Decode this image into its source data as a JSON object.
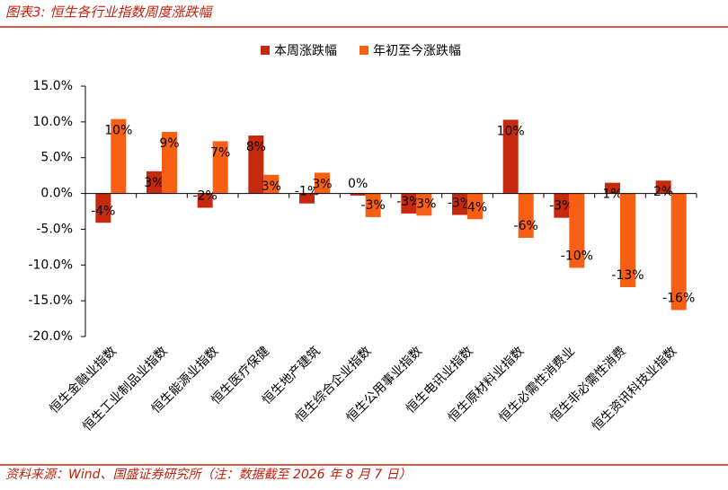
{
  "chart_data": {
    "type": "bar",
    "title": "图表3:  恒生各行业指数周度涨跌幅",
    "source": "资料来源：Wind、国盛证券研究所（注：数据截至 2026 年 8 月 7 日）",
    "categories": [
      "恒生金融业指数",
      "恒生工业制品业指数",
      "恒生能源业指数",
      "恒生医疗保健",
      "恒生地产建筑",
      "恒生综合企业指数",
      "恒生公用事业指数",
      "恒生电讯业指数",
      "恒生原材料业指数",
      "恒生必需性消费业",
      "恒生非必需性消费",
      "恒生资讯科技业指数"
    ],
    "series": [
      {
        "name": "本周涨跌幅",
        "color": "#c52a0e",
        "values": [
          -4.1,
          3.1,
          -2.0,
          8.1,
          -1.4,
          -0.3,
          -2.8,
          -3.0,
          10.3,
          -3.4,
          1.5,
          1.8
        ],
        "value_labels": [
          "-4%",
          "3%",
          "-2%",
          "8%",
          "-1%",
          "0%",
          "-3%",
          "-3%",
          "10%",
          "-3%",
          "1%",
          "2%"
        ]
      },
      {
        "name": "年初至今涨跌幅",
        "color": "#f65f14",
        "values": [
          10.4,
          8.6,
          7.3,
          2.6,
          2.9,
          -3.3,
          -3.1,
          -3.6,
          -6.2,
          -10.4,
          -13.1,
          -16.3
        ],
        "value_labels": [
          "10%",
          "9%",
          "7%",
          "3%",
          "3%",
          "-3%",
          "-3%",
          "-4%",
          "-6%",
          "-10%",
          "-13%",
          "-16%"
        ]
      }
    ],
    "ylim": [
      -20,
      15
    ],
    "yticks": [
      {
        "value": -20,
        "label": "-20.0%"
      },
      {
        "value": -15,
        "label": "-15.0%"
      },
      {
        "value": -10,
        "label": "-10.0%"
      },
      {
        "value": -5,
        "label": "-5.0%"
      },
      {
        "value": 0,
        "label": "0.0%"
      },
      {
        "value": 5,
        "label": "5.0%"
      },
      {
        "value": 10,
        "label": "10.0%"
      },
      {
        "value": 15,
        "label": "15.0%"
      }
    ],
    "grid": false
  }
}
